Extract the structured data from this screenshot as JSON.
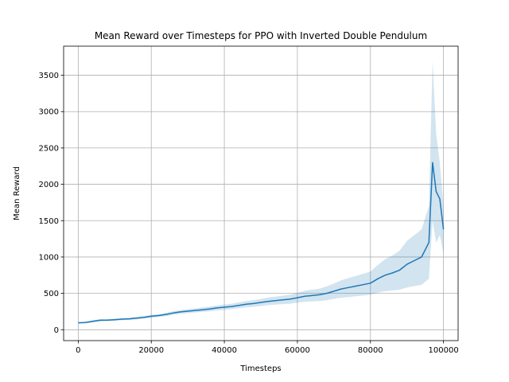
{
  "chart_data": {
    "type": "line",
    "title": "Mean Reward over Timesteps for PPO with Inverted Double Pendulum",
    "xlabel": "Timesteps",
    "ylabel": "Mean Reward",
    "xlim": [
      -4000,
      104000
    ],
    "ylim": [
      -150,
      3900
    ],
    "xticks": [
      0,
      20000,
      40000,
      60000,
      80000,
      100000
    ],
    "yticks": [
      0,
      500,
      1000,
      1500,
      2000,
      2500,
      3000,
      3500
    ],
    "grid": true,
    "line_color": "#1f77b4",
    "band_color": "#1f77b4",
    "series": [
      {
        "x": [
          0,
          2000,
          4000,
          6000,
          8000,
          10000,
          12000,
          14000,
          16000,
          18000,
          20000,
          22000,
          24000,
          26000,
          28000,
          30000,
          32000,
          34000,
          36000,
          38000,
          40000,
          42000,
          44000,
          46000,
          48000,
          50000,
          52000,
          54000,
          56000,
          58000,
          60000,
          62000,
          64000,
          66000,
          68000,
          70000,
          72000,
          74000,
          76000,
          78000,
          80000,
          82000,
          84000,
          86000,
          88000,
          90000,
          92000,
          94000,
          96000,
          97000,
          98000,
          99000,
          100000
        ],
        "y": [
          95,
          100,
          115,
          130,
          132,
          138,
          145,
          150,
          160,
          170,
          185,
          195,
          210,
          230,
          245,
          255,
          265,
          275,
          285,
          300,
          310,
          320,
          335,
          350,
          360,
          375,
          390,
          400,
          410,
          420,
          440,
          460,
          470,
          480,
          500,
          530,
          560,
          580,
          600,
          620,
          640,
          700,
          750,
          780,
          820,
          900,
          950,
          1000,
          1200,
          2300,
          1900,
          1800,
          1380
        ],
        "lower": [
          85,
          90,
          100,
          115,
          118,
          124,
          130,
          135,
          143,
          152,
          165,
          175,
          188,
          205,
          220,
          228,
          237,
          245,
          253,
          265,
          273,
          282,
          294,
          307,
          315,
          326,
          338,
          345,
          352,
          358,
          372,
          385,
          390,
          395,
          405,
          425,
          440,
          450,
          460,
          470,
          480,
          510,
          530,
          540,
          550,
          580,
          600,
          620,
          700,
          1500,
          1200,
          1300,
          1050
        ],
        "upper": [
          105,
          110,
          130,
          145,
          146,
          152,
          160,
          165,
          177,
          188,
          205,
          215,
          232,
          255,
          270,
          282,
          293,
          305,
          317,
          335,
          347,
          358,
          376,
          393,
          405,
          424,
          442,
          455,
          468,
          482,
          508,
          535,
          550,
          565,
          595,
          635,
          680,
          710,
          740,
          770,
          800,
          890,
          970,
          1020,
          1090,
          1220,
          1300,
          1380,
          1700,
          3700,
          2700,
          2300,
          1700
        ]
      }
    ]
  }
}
